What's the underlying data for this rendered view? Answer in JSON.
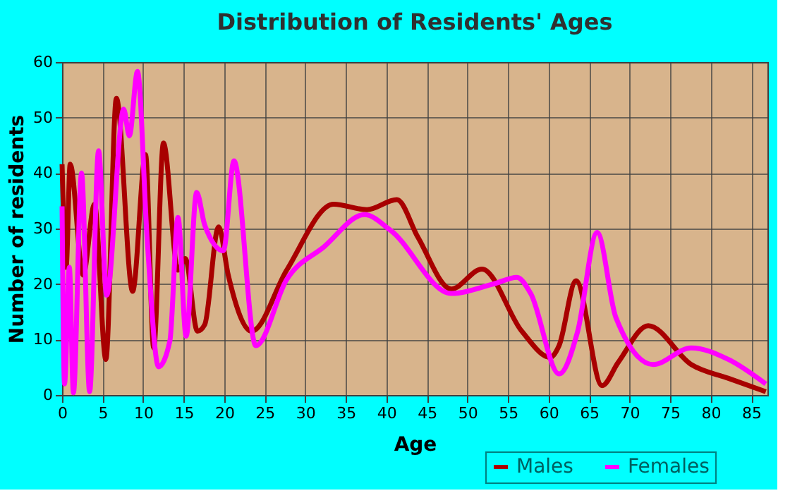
{
  "chart_data": {
    "type": "line",
    "title": "Distribution of Residents' Ages",
    "xlabel": "Age",
    "ylabel": "Number of residents",
    "xlim": [
      0,
      87
    ],
    "xticks": [
      0,
      5,
      10,
      15,
      20,
      25,
      30,
      35,
      40,
      45,
      50,
      55,
      60,
      65,
      70,
      75,
      80,
      85
    ],
    "ylim": [
      0,
      60
    ],
    "yticks": [
      0,
      10,
      20,
      30,
      40,
      50,
      60
    ],
    "grid": true,
    "legend": "bottom right",
    "line_style": "solid",
    "marker": "none",
    "series": [
      {
        "name": "Males",
        "color": "#a80000",
        "x": [
          0,
          0.5,
          1,
          2.6,
          4,
          5.4,
          6.7,
          8.7,
          10.3,
          11.3,
          12.5,
          14.3,
          15.2,
          16.7,
          17.6,
          19.3,
          20.5,
          23.4,
          27.7,
          33.5,
          37.6,
          41.3,
          43.9,
          48,
          51.8,
          56.7,
          60.2,
          61.3,
          63.4,
          66.6,
          68.6,
          72.3,
          77.6,
          82.2,
          86.8
        ],
        "values": [
          41.6,
          23,
          41.6,
          21.6,
          34.4,
          6.4,
          53.5,
          18.7,
          43.3,
          8.5,
          45.4,
          22.5,
          24.6,
          11.5,
          12.7,
          30.3,
          21.6,
          11.5,
          22.5,
          34.4,
          33.4,
          35.2,
          28.4,
          19.1,
          22.7,
          11.5,
          6.8,
          8.9,
          20.6,
          1.7,
          5.9,
          12.5,
          5.5,
          3,
          0.6
        ]
      },
      {
        "name": "Females",
        "color": "#ff00ff",
        "x": [
          0,
          0.3,
          0.9,
          1.4,
          2.4,
          3.4,
          4.5,
          5.5,
          7.6,
          8.3,
          9.3,
          10.5,
          11.9,
          13.3,
          14.3,
          15.3,
          16.6,
          17.6,
          19.9,
          21.2,
          23.9,
          27.7,
          32.3,
          37.3,
          40.5,
          48,
          53.2,
          56.1,
          57.8,
          61.3,
          63.6,
          66,
          68.3,
          72.9,
          77.6,
          82.2,
          86.8
        ],
        "values": [
          34,
          2,
          23,
          0.4,
          40,
          0.6,
          44,
          18,
          51.5,
          46.7,
          58.3,
          28,
          5.1,
          9.8,
          32,
          10.6,
          36.5,
          30.6,
          26,
          42.2,
          8.9,
          20.8,
          26.7,
          32.5,
          29.7,
          18.3,
          20,
          21.2,
          18.3,
          3.8,
          11.5,
          29.3,
          14,
          5.5,
          8.5,
          6.4,
          2
        ]
      }
    ]
  }
}
